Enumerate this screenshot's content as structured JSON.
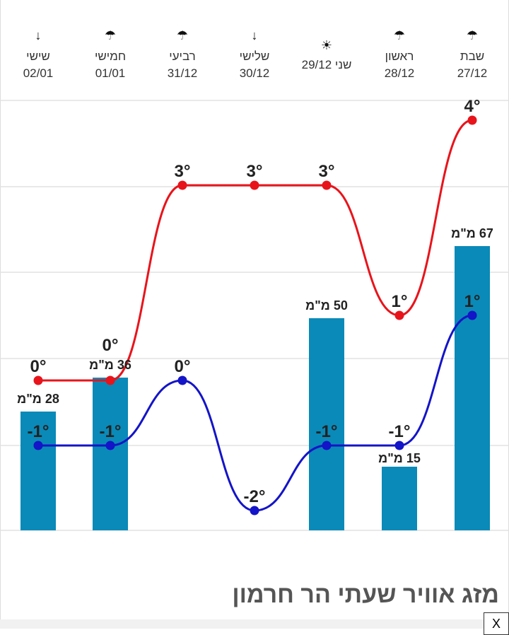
{
  "days": [
    {
      "name": "שישי",
      "date": "02/01",
      "icon": "arrow-down-icon",
      "glyph": "↓"
    },
    {
      "name": "חמישי",
      "date": "01/01",
      "icon": "rain-cloud-icon",
      "glyph": "☂"
    },
    {
      "name": "רביעי",
      "date": "31/12",
      "icon": "rain-cloud-icon",
      "glyph": "☂"
    },
    {
      "name": "שלישי",
      "date": "30/12",
      "icon": "arrow-down-icon",
      "glyph": "↓"
    },
    {
      "name": "שני",
      "date": "שני 29/12",
      "icon": "sun-icon",
      "glyph": "☀"
    },
    {
      "name": "ראשון",
      "date": "28/12",
      "icon": "rain-cloud-icon",
      "glyph": "☂"
    },
    {
      "name": "שבת",
      "date": "27/12",
      "icon": "rain-cloud-icon",
      "glyph": "☂"
    }
  ],
  "chart_data": {
    "type": "line",
    "categories": [
      "02/01",
      "01/01",
      "31/12",
      "30/12",
      "29/12",
      "28/12",
      "27/12"
    ],
    "series": [
      {
        "name": "high",
        "color": "#e8141b",
        "values": [
          0,
          0,
          3,
          3,
          3,
          1,
          4
        ],
        "labels": [
          "0°",
          "0°",
          "3°",
          "3°",
          "3°",
          "1°",
          "4°"
        ]
      },
      {
        "name": "low",
        "color": "#1414c8",
        "values": [
          -1,
          -1,
          0,
          -2,
          -1,
          -1,
          1
        ],
        "labels": [
          "-1°",
          "-1°",
          "0°",
          "-2°",
          "-1°",
          "-1°",
          "1°"
        ]
      },
      {
        "name": "precipitation",
        "type": "bar",
        "color": "#0a8ab8",
        "values": [
          28,
          36,
          null,
          null,
          50,
          15,
          67
        ],
        "labels": [
          "28 מ\"מ",
          "36 מ\"מ",
          "",
          "",
          "50 מ\"מ",
          "15 מ\"מ",
          "67 מ\"מ"
        ]
      }
    ],
    "temp_range": [
      -2.3,
      4.8
    ],
    "precip_unit": "מ\"מ",
    "grid": true
  },
  "title": "מזג אוויר שעתי הר חרמון",
  "close_label": "X"
}
